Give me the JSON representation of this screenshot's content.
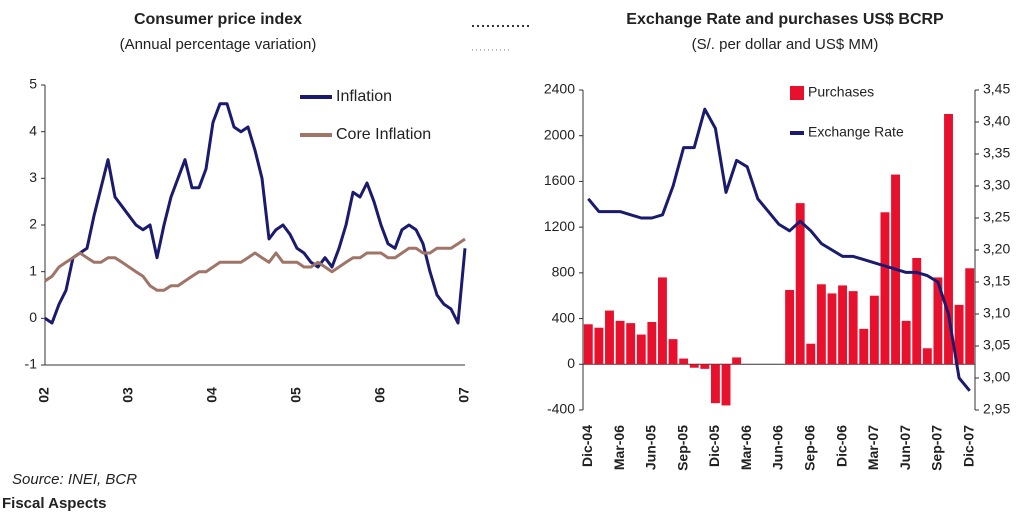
{
  "chart_data": [
    {
      "type": "line",
      "title": "Consumer price index",
      "subtitle": "(Annual percentage variation)",
      "categories": [
        "02",
        null,
        null,
        null,
        null,
        null,
        null,
        null,
        null,
        null,
        null,
        null,
        "03",
        null,
        null,
        null,
        null,
        null,
        null,
        null,
        null,
        null,
        null,
        null,
        "04",
        null,
        null,
        null,
        null,
        null,
        null,
        null,
        null,
        null,
        null,
        null,
        "05",
        null,
        null,
        null,
        null,
        null,
        null,
        null,
        null,
        null,
        null,
        null,
        "06",
        null,
        null,
        null,
        null,
        null,
        null,
        null,
        null,
        null,
        null,
        null,
        "07"
      ],
      "series": [
        {
          "name": "Inflation",
          "color": "#1a1a6e",
          "values": [
            0.0,
            -0.1,
            0.3,
            0.6,
            1.3,
            1.4,
            1.5,
            2.2,
            2.8,
            3.4,
            2.6,
            2.4,
            2.2,
            2.0,
            1.9,
            2.0,
            1.3,
            2.0,
            2.6,
            3.0,
            3.4,
            2.8,
            2.8,
            3.2,
            4.2,
            4.6,
            4.6,
            4.1,
            4.0,
            4.1,
            3.6,
            3.0,
            1.7,
            1.9,
            2.0,
            1.8,
            1.5,
            1.4,
            1.2,
            1.1,
            1.3,
            1.1,
            1.5,
            2.0,
            2.7,
            2.6,
            2.9,
            2.5,
            2.0,
            1.6,
            1.5,
            1.9,
            2.0,
            1.9,
            1.6,
            1.0,
            0.5,
            0.3,
            0.2,
            -0.1,
            1.5
          ]
        },
        {
          "name": "Core Inflation",
          "color": "#a07568",
          "values": [
            0.8,
            0.9,
            1.1,
            1.2,
            1.3,
            1.4,
            1.3,
            1.2,
            1.2,
            1.3,
            1.3,
            1.2,
            1.1,
            1.0,
            0.9,
            0.7,
            0.6,
            0.6,
            0.7,
            0.7,
            0.8,
            0.9,
            1.0,
            1.0,
            1.1,
            1.2,
            1.2,
            1.2,
            1.2,
            1.3,
            1.4,
            1.3,
            1.2,
            1.4,
            1.2,
            1.2,
            1.2,
            1.1,
            1.1,
            1.2,
            1.1,
            1.0,
            1.1,
            1.2,
            1.3,
            1.3,
            1.4,
            1.4,
            1.4,
            1.3,
            1.3,
            1.4,
            1.5,
            1.5,
            1.4,
            1.4,
            1.5,
            1.5,
            1.5,
            1.6,
            1.7
          ]
        }
      ],
      "ylim": [
        -1,
        5
      ],
      "yticks": [
        -1,
        0,
        1,
        2,
        3,
        4,
        5
      ],
      "grid": false,
      "legend": "upper right"
    },
    {
      "type": "bar",
      "title": "Exchange Rate and purchases US$ BCRP",
      "subtitle": "(S/. per dollar and US$ MM)",
      "categories": [
        "Dic-04",
        null,
        null,
        "Mar-06",
        null,
        null,
        "Jun-05",
        null,
        null,
        "Sep-05",
        null,
        null,
        "Dic-05",
        null,
        null,
        "Mar-06",
        null,
        null,
        "Jun-06",
        null,
        null,
        "Sep-06",
        null,
        null,
        "Dic-06",
        null,
        null,
        "Mar-07",
        null,
        null,
        "Jun-07",
        null,
        null,
        "Sep-07",
        null,
        null,
        "Dic-07"
      ],
      "series": [
        {
          "name": "Purchases",
          "type": "bar",
          "color": "#e8112d",
          "values": [
            350,
            320,
            470,
            380,
            360,
            260,
            370,
            760,
            220,
            50,
            -30,
            -40,
            -340,
            -360,
            60,
            0,
            0,
            0,
            0,
            650,
            1410,
            180,
            700,
            620,
            690,
            640,
            310,
            600,
            1330,
            1660,
            380,
            930,
            140,
            760,
            2190,
            520,
            840
          ]
        },
        {
          "name": "Exchange Rate",
          "type": "line",
          "axis": "y2",
          "color": "#1a1a6e",
          "values": [
            3.28,
            3.26,
            3.26,
            3.26,
            3.255,
            3.25,
            3.25,
            3.255,
            3.3,
            3.36,
            3.36,
            3.42,
            3.39,
            3.29,
            3.34,
            3.33,
            3.28,
            3.26,
            3.24,
            3.23,
            3.245,
            3.23,
            3.21,
            3.2,
            3.19,
            3.19,
            3.185,
            3.18,
            3.175,
            3.17,
            3.165,
            3.165,
            3.16,
            3.15,
            3.1,
            3.0,
            2.98
          ]
        }
      ],
      "ylim": [
        -400,
        2400
      ],
      "yticks": [
        -400,
        0,
        400,
        800,
        1200,
        1600,
        2000,
        2400
      ],
      "y2lim": [
        2.95,
        3.45
      ],
      "y2ticks": [
        {
          "value": 2.95,
          "label": "2,95"
        },
        {
          "value": 3.0,
          "label": "3,00"
        },
        {
          "value": 3.05,
          "label": "3,05"
        },
        {
          "value": 3.1,
          "label": "3,10"
        },
        {
          "value": 3.15,
          "label": "3,15"
        },
        {
          "value": 3.2,
          "label": "3,20"
        },
        {
          "value": 3.25,
          "label": "3,25"
        },
        {
          "value": 3.3,
          "label": "3,30"
        },
        {
          "value": 3.35,
          "label": "3,35"
        },
        {
          "value": 3.4,
          "label": "3,40"
        },
        {
          "value": 3.45,
          "label": "3,45"
        }
      ],
      "grid": false,
      "legend": "upper right"
    }
  ],
  "footer": {
    "source": "Source: INEI, BCR",
    "section": "Fiscal Aspects"
  }
}
